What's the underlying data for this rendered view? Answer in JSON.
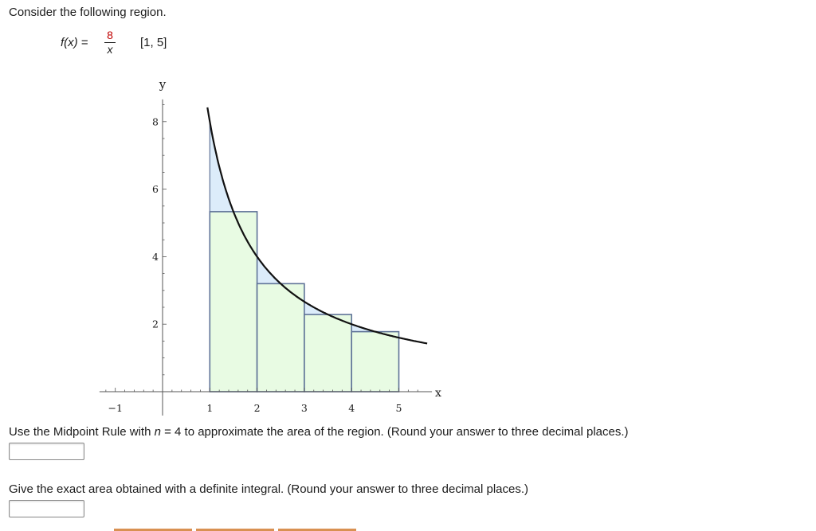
{
  "question": {
    "intro": "Consider the following region.",
    "function_lhs": "f(x)",
    "equals": "=",
    "numerator": "8",
    "denominator": "x",
    "interval": "[1, 5]",
    "q1_pre": "Use the Midpoint Rule with ",
    "q1_var": "n",
    "q1_post": " = 4 to approximate the area of the region. (Round your answer to three decimal places.)",
    "q2": "Give the exact area obtained with a definite integral. (Round your answer to three decimal places.)",
    "answer1_value": "",
    "answer2_value": ""
  },
  "colors": {
    "curve": "#111111",
    "rect_fill": "#e8fbe3",
    "rect_stroke": "#5f7397",
    "over_fill": "#d6d6d6",
    "under_fill": "#dcecfa",
    "axis": "#555555"
  },
  "chart_data": {
    "type": "area",
    "function": "8/x",
    "interval": [
      1,
      5
    ],
    "xlabel": "x",
    "ylabel": "y",
    "x_ticks": [
      -1,
      1,
      2,
      3,
      4,
      5
    ],
    "y_ticks": [
      2,
      4,
      6,
      8
    ],
    "xlim": [
      -1.2,
      5.6
    ],
    "ylim": [
      0,
      8.8
    ],
    "curve": {
      "x_start": 0.95,
      "x_end": 5.6
    },
    "rectangles": [
      {
        "x0": 1,
        "x1": 2,
        "height": 5.333
      },
      {
        "x0": 2,
        "x1": 3,
        "height": 3.2
      },
      {
        "x0": 3,
        "x1": 4,
        "height": 2.286
      },
      {
        "x0": 4,
        "x1": 5,
        "height": 1.778
      }
    ]
  }
}
